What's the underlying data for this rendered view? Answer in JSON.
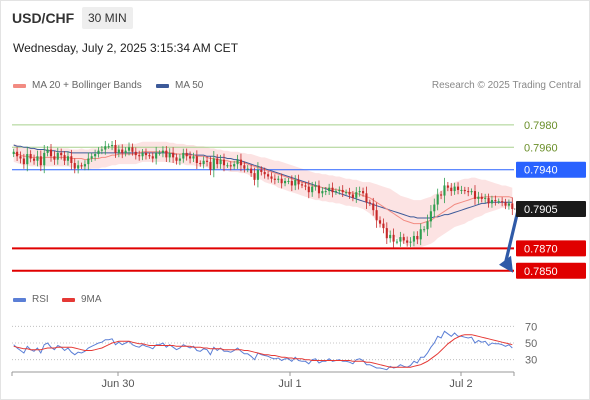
{
  "header": {
    "symbol": "USD/CHF",
    "timeframe": "30 MIN",
    "datetime": "Wednesday, July 2, 2025 3:15:34 AM CET"
  },
  "legend": {
    "ma20": {
      "label": "MA 20 + Bollinger Bands",
      "color": "#f28b82"
    },
    "ma50": {
      "label": "MA 50",
      "color": "#3d5a99"
    },
    "copyright": "Research © 2025 Trading Central"
  },
  "rsi_legend": {
    "rsi": {
      "label": "RSI",
      "color": "#5b7fd6"
    },
    "ma9": {
      "label": "9MA",
      "color": "#e53935"
    }
  },
  "colors": {
    "bullish": "#2e9e4f",
    "bearish": "#c62828",
    "accent_blue": "#2962ff",
    "arrow": "#2f5aa8"
  },
  "chart_data": [
    {
      "type": "candlestick",
      "x_ticks": [
        "Jun 30",
        "Jul 1",
        "Jul 2"
      ],
      "ylim": [
        0.784,
        0.7995
      ],
      "current_price": {
        "label": "0.7905",
        "value": 0.7905
      },
      "levels": [
        {
          "label": "0.7980",
          "value": 0.798,
          "style": "resistance-light",
          "color": "#a8d08d"
        },
        {
          "label": "0.7960",
          "value": 0.796,
          "style": "resistance-light",
          "color": "#a8d08d"
        },
        {
          "label": "0.7940",
          "value": 0.794,
          "style": "pivot",
          "color": "#2962ff"
        },
        {
          "label": "0.7870",
          "value": 0.787,
          "style": "support",
          "color": "#e00000"
        },
        {
          "label": "0.7850",
          "value": 0.785,
          "style": "support",
          "color": "#e00000"
        }
      ],
      "forecast_arrow": {
        "from": 0.7905,
        "to": 0.785,
        "direction": "down"
      },
      "close": [
        0.7956,
        0.7952,
        0.795,
        0.7945,
        0.7954,
        0.795,
        0.7948,
        0.7952,
        0.7944,
        0.7955,
        0.7958,
        0.7952,
        0.7949,
        0.7955,
        0.7953,
        0.7948,
        0.7952,
        0.7946,
        0.7941,
        0.7944,
        0.7943,
        0.7945,
        0.795,
        0.7952,
        0.7954,
        0.7957,
        0.7958,
        0.7961,
        0.7961,
        0.7962,
        0.7955,
        0.7958,
        0.7955,
        0.7957,
        0.796,
        0.7956,
        0.7953,
        0.7952,
        0.7955,
        0.7953,
        0.7952,
        0.795,
        0.7955,
        0.7955,
        0.7957,
        0.7951,
        0.7955,
        0.7951,
        0.7948,
        0.795,
        0.7955,
        0.7952,
        0.795,
        0.7952,
        0.7946,
        0.7945,
        0.7948,
        0.7947,
        0.794,
        0.795,
        0.7945,
        0.7949,
        0.7944,
        0.7944,
        0.7943,
        0.7945,
        0.7949,
        0.7944,
        0.7941,
        0.7941,
        0.7937,
        0.7931,
        0.794,
        0.7938,
        0.7936,
        0.7934,
        0.7932,
        0.7931,
        0.7932,
        0.7928,
        0.793,
        0.793,
        0.7926,
        0.7931,
        0.7927,
        0.7926,
        0.7925,
        0.792,
        0.7925,
        0.7926,
        0.7919,
        0.7921,
        0.7921,
        0.7924,
        0.792,
        0.7921,
        0.7922,
        0.792,
        0.792,
        0.7918,
        0.7915,
        0.792,
        0.7921,
        0.7919,
        0.7911,
        0.791,
        0.7904,
        0.7895,
        0.7892,
        0.7888,
        0.7879,
        0.7882,
        0.7876,
        0.7876,
        0.788,
        0.7877,
        0.7875,
        0.7876,
        0.7881,
        0.7878,
        0.7887,
        0.7887,
        0.7894,
        0.7903,
        0.7909,
        0.7918,
        0.7917,
        0.7926,
        0.7924,
        0.7921,
        0.7925,
        0.7922,
        0.7922,
        0.7921,
        0.792,
        0.7921,
        0.7914,
        0.7916,
        0.7914,
        0.7915,
        0.791,
        0.7913,
        0.7912,
        0.7912,
        0.7911,
        0.7908,
        0.791,
        0.7905
      ],
      "ma20": [
        0.7955,
        0.7954,
        0.7953,
        0.7952,
        0.7952,
        0.7951,
        0.7951,
        0.7951,
        0.795,
        0.7951,
        0.7951,
        0.7951,
        0.7951,
        0.7951,
        0.7951,
        0.7951,
        0.7951,
        0.795,
        0.795,
        0.795,
        0.795,
        0.7949,
        0.7949,
        0.795,
        0.795,
        0.795,
        0.7951,
        0.7951,
        0.7952,
        0.7953,
        0.7953,
        0.7954,
        0.7954,
        0.7954,
        0.7954,
        0.7954,
        0.7954,
        0.7955,
        0.7956,
        0.7956,
        0.7956,
        0.7956,
        0.7956,
        0.7956,
        0.7956,
        0.7956,
        0.7955,
        0.7955,
        0.7954,
        0.7954,
        0.7954,
        0.7953,
        0.7953,
        0.7953,
        0.7952,
        0.7952,
        0.7952,
        0.7951,
        0.795,
        0.795,
        0.7949,
        0.7949,
        0.7948,
        0.7948,
        0.7947,
        0.7947,
        0.7947,
        0.7946,
        0.7946,
        0.7945,
        0.7944,
        0.7943,
        0.7942,
        0.7941,
        0.794,
        0.7939,
        0.7938,
        0.7937,
        0.7936,
        0.7935,
        0.7934,
        0.7933,
        0.7932,
        0.7931,
        0.793,
        0.7929,
        0.7928,
        0.7927,
        0.7926,
        0.7925,
        0.7925,
        0.7924,
        0.7924,
        0.7923,
        0.7923,
        0.7922,
        0.7922,
        0.7921,
        0.792,
        0.792,
        0.7919,
        0.7919,
        0.7918,
        0.7917,
        0.7916,
        0.7915,
        0.7913,
        0.7911,
        0.7909,
        0.7907,
        0.7905,
        0.7903,
        0.7901,
        0.7899,
        0.7897,
        0.7895,
        0.7894,
        0.7893,
        0.7892,
        0.7892,
        0.7892,
        0.7893,
        0.7894,
        0.7895,
        0.7897,
        0.7899,
        0.7901,
        0.7903,
        0.7905,
        0.7907,
        0.7909,
        0.791,
        0.7911,
        0.7912,
        0.7913,
        0.7914,
        0.7915,
        0.7915,
        0.7915,
        0.7916,
        0.7916,
        0.7916,
        0.7916,
        0.7916,
        0.7916,
        0.7916,
        0.7916,
        0.7915
      ],
      "bb_width": [
        0.0008,
        0.0008,
        0.0008,
        0.0008,
        0.0008,
        0.0008,
        0.0008,
        0.0008,
        0.0008,
        0.0008,
        0.0008,
        0.0008,
        0.0008,
        0.0008,
        0.0008,
        0.0008,
        0.0008,
        0.0008,
        0.0008,
        0.0008,
        0.0009,
        0.0009,
        0.0009,
        0.0009,
        0.0009,
        0.0009,
        0.0009,
        0.0009,
        0.0009,
        0.0009,
        0.0009,
        0.0009,
        0.0009,
        0.0009,
        0.0009,
        0.0009,
        0.0009,
        0.0009,
        0.0009,
        0.0009,
        0.0009,
        0.0009,
        0.0009,
        0.0009,
        0.0009,
        0.0009,
        0.0009,
        0.0009,
        0.0009,
        0.0009,
        0.0009,
        0.0009,
        0.0009,
        0.0009,
        0.0009,
        0.0009,
        0.0009,
        0.0009,
        0.0009,
        0.0009,
        0.0009,
        0.0009,
        0.0009,
        0.0009,
        0.0009,
        0.0009,
        0.0009,
        0.0009,
        0.0009,
        0.0009,
        0.001,
        0.001,
        0.001,
        0.001,
        0.0011,
        0.0011,
        0.0011,
        0.0011,
        0.0012,
        0.0012,
        0.0012,
        0.0012,
        0.0012,
        0.0012,
        0.0012,
        0.0012,
        0.0012,
        0.0012,
        0.0012,
        0.0012,
        0.0012,
        0.0012,
        0.0012,
        0.0012,
        0.0012,
        0.0012,
        0.0012,
        0.0012,
        0.0012,
        0.0012,
        0.0012,
        0.0012,
        0.0012,
        0.0012,
        0.0013,
        0.0014,
        0.0015,
        0.0016,
        0.0017,
        0.0018,
        0.0019,
        0.002,
        0.002,
        0.002,
        0.002,
        0.0021,
        0.0021,
        0.0021,
        0.0021,
        0.0021,
        0.0021,
        0.0021,
        0.0021,
        0.0021,
        0.0021,
        0.002,
        0.002,
        0.002,
        0.002,
        0.002,
        0.002,
        0.002,
        0.002,
        0.002,
        0.0019,
        0.0019,
        0.0018,
        0.0017,
        0.0016,
        0.0015,
        0.0014,
        0.0013,
        0.0012,
        0.0011,
        0.001,
        0.001,
        0.0009,
        0.0009
      ],
      "ma50": [
        0.7962,
        0.7961,
        0.7961,
        0.796,
        0.796,
        0.7959,
        0.7959,
        0.7958,
        0.7958,
        0.7958,
        0.7957,
        0.7957,
        0.7957,
        0.7956,
        0.7956,
        0.7956,
        0.7956,
        0.7955,
        0.7955,
        0.7955,
        0.7955,
        0.7955,
        0.7955,
        0.7955,
        0.7955,
        0.7955,
        0.7955,
        0.7955,
        0.7955,
        0.7955,
        0.7955,
        0.7955,
        0.7955,
        0.7955,
        0.7955,
        0.7955,
        0.7955,
        0.7955,
        0.7955,
        0.7955,
        0.7955,
        0.7955,
        0.7955,
        0.7955,
        0.7955,
        0.7955,
        0.7955,
        0.7954,
        0.7954,
        0.7954,
        0.7954,
        0.7954,
        0.7954,
        0.7953,
        0.7953,
        0.7953,
        0.7953,
        0.7952,
        0.7952,
        0.7952,
        0.7951,
        0.7951,
        0.7951,
        0.795,
        0.795,
        0.7949,
        0.7949,
        0.7948,
        0.7947,
        0.7946,
        0.7945,
        0.7944,
        0.7943,
        0.7942,
        0.7941,
        0.794,
        0.7939,
        0.7938,
        0.7937,
        0.7936,
        0.7935,
        0.7934,
        0.7933,
        0.7932,
        0.7931,
        0.793,
        0.7929,
        0.7928,
        0.7927,
        0.7926,
        0.7925,
        0.7924,
        0.7923,
        0.7922,
        0.7921,
        0.792,
        0.7919,
        0.7918,
        0.7917,
        0.7916,
        0.7915,
        0.7914,
        0.7913,
        0.7912,
        0.7911,
        0.791,
        0.7909,
        0.7908,
        0.7907,
        0.7906,
        0.7905,
        0.7904,
        0.7903,
        0.7902,
        0.7901,
        0.79,
        0.7899,
        0.7898,
        0.7898,
        0.7897,
        0.7897,
        0.7897,
        0.7897,
        0.7897,
        0.7898,
        0.7898,
        0.7899,
        0.79,
        0.79,
        0.7901,
        0.7902,
        0.7903,
        0.7904,
        0.7905,
        0.7906,
        0.7907,
        0.7908,
        0.7909,
        0.791,
        0.791,
        0.7911,
        0.7911,
        0.7911,
        0.7911,
        0.7911,
        0.7911,
        0.7911,
        0.7911
      ]
    },
    {
      "type": "line",
      "yticks": [
        "70",
        "50",
        "30"
      ],
      "ylim": [
        20,
        80
      ],
      "series": [
        {
          "name": "RSI",
          "values": [
            48,
            44,
            41,
            38,
            46,
            42,
            40,
            44,
            38,
            48,
            50,
            45,
            42,
            47,
            45,
            41,
            44,
            39,
            36,
            39,
            38,
            40,
            44,
            46,
            48,
            50,
            51,
            54,
            54,
            55,
            48,
            51,
            48,
            50,
            52,
            48,
            46,
            45,
            48,
            46,
            45,
            43,
            48,
            48,
            50,
            45,
            48,
            45,
            42,
            44,
            48,
            46,
            44,
            46,
            41,
            40,
            43,
            42,
            36,
            45,
            41,
            44,
            40,
            40,
            39,
            41,
            44,
            40,
            37,
            37,
            34,
            30,
            38,
            36,
            35,
            34,
            32,
            31,
            32,
            29,
            31,
            31,
            28,
            33,
            29,
            28,
            28,
            25,
            30,
            31,
            26,
            28,
            28,
            31,
            28,
            29,
            30,
            28,
            28,
            27,
            25,
            30,
            31,
            29,
            24,
            24,
            22,
            20,
            20,
            19,
            18,
            22,
            20,
            21,
            24,
            22,
            21,
            23,
            28,
            26,
            33,
            33,
            38,
            45,
            50,
            58,
            56,
            64,
            61,
            58,
            62,
            58,
            58,
            57,
            56,
            57,
            50,
            53,
            51,
            52,
            47,
            50,
            49,
            49,
            48,
            46,
            48,
            44
          ]
        },
        {
          "name": "9MA",
          "values": [
            46,
            45,
            44,
            43,
            43,
            42,
            42,
            42,
            42,
            43,
            44,
            44,
            44,
            45,
            45,
            45,
            45,
            45,
            44,
            43,
            42,
            41,
            41,
            41,
            42,
            43,
            44,
            46,
            48,
            50,
            51,
            52,
            52,
            52,
            52,
            51,
            50,
            49,
            49,
            48,
            47,
            47,
            47,
            47,
            47,
            47,
            47,
            47,
            46,
            46,
            46,
            46,
            46,
            45,
            45,
            45,
            44,
            44,
            43,
            43,
            43,
            43,
            42,
            42,
            42,
            42,
            42,
            42,
            41,
            41,
            40,
            39,
            38,
            37,
            36,
            36,
            35,
            35,
            34,
            33,
            33,
            32,
            32,
            31,
            31,
            31,
            30,
            30,
            29,
            29,
            29,
            29,
            29,
            29,
            29,
            29,
            29,
            29,
            29,
            29,
            28,
            28,
            28,
            28,
            27,
            27,
            26,
            25,
            24,
            23,
            22,
            21,
            21,
            21,
            21,
            21,
            21,
            21,
            22,
            23,
            24,
            26,
            28,
            31,
            34,
            37,
            41,
            45,
            49,
            52,
            55,
            57,
            59,
            60,
            60,
            60,
            59,
            58,
            57,
            56,
            55,
            54,
            53,
            52,
            51,
            50,
            49,
            48
          ]
        }
      ]
    }
  ]
}
